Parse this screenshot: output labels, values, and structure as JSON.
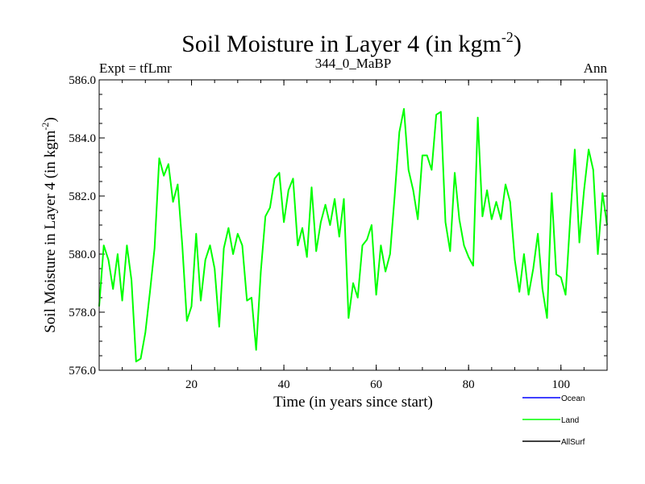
{
  "chart_data": {
    "type": "line",
    "title_main": "Soil Moisture in Layer 4 (in kgm",
    "title_sup": "-2",
    "title_close": ")",
    "subtitle_left": "Expt = tfLmr",
    "subtitle_center": "344_0_MaBP",
    "subtitle_right": "Ann",
    "xlabel": "Time (in years since start)",
    "ylabel_main": "Soil Moisture in Layer 4 (in kgm",
    "ylabel_sup": "-2",
    "ylabel_close": ")",
    "xlim": [
      0,
      110
    ],
    "ylim": [
      576.0,
      586.0
    ],
    "xticks": [
      20,
      40,
      60,
      80,
      100
    ],
    "yticks": [
      576.0,
      578.0,
      580.0,
      582.0,
      584.0,
      586.0
    ],
    "ytick_labels": [
      "576.0",
      "578.0",
      "580.0",
      "582.0",
      "584.0",
      "586.0"
    ],
    "legend_position": "bottom-right",
    "series": [
      {
        "name": "Ocean",
        "color": "#0000ff",
        "values": []
      },
      {
        "name": "Land",
        "color": "#00ff00",
        "x": [
          0,
          1,
          2,
          3,
          4,
          5,
          6,
          7,
          8,
          9,
          10,
          11,
          12,
          13,
          14,
          15,
          16,
          17,
          18,
          19,
          20,
          21,
          22,
          23,
          24,
          25,
          26,
          27,
          28,
          29,
          30,
          31,
          32,
          33,
          34,
          35,
          36,
          37,
          38,
          39,
          40,
          41,
          42,
          43,
          44,
          45,
          46,
          47,
          48,
          49,
          50,
          51,
          52,
          53,
          54,
          55,
          56,
          57,
          58,
          59,
          60,
          61,
          62,
          63,
          64,
          65,
          66,
          67,
          68,
          69,
          70,
          71,
          72,
          73,
          74,
          75,
          76,
          77,
          78,
          79,
          80,
          81,
          82,
          83,
          84,
          85,
          86,
          87,
          88,
          89,
          90,
          91,
          92,
          93,
          94,
          95,
          96,
          97,
          98,
          99,
          100,
          101,
          102,
          103,
          104,
          105,
          106,
          107,
          108,
          109,
          110
        ],
        "values": [
          578.2,
          580.3,
          579.8,
          578.8,
          580.0,
          578.4,
          580.3,
          579.1,
          576.3,
          576.4,
          577.3,
          578.7,
          580.2,
          583.3,
          582.7,
          583.1,
          581.8,
          582.4,
          580.3,
          577.7,
          578.2,
          580.7,
          578.4,
          579.8,
          580.3,
          579.5,
          577.5,
          580.2,
          580.9,
          580.0,
          580.7,
          580.3,
          578.4,
          578.5,
          576.7,
          579.4,
          581.3,
          581.6,
          582.6,
          582.8,
          581.1,
          582.2,
          582.6,
          580.3,
          580.9,
          579.9,
          582.3,
          580.1,
          581.1,
          581.7,
          581.0,
          581.9,
          580.6,
          581.9,
          577.8,
          579.0,
          578.5,
          580.3,
          580.5,
          581.0,
          578.6,
          580.3,
          579.4,
          580.0,
          582.0,
          584.2,
          585.0,
          582.9,
          582.2,
          581.2,
          583.4,
          583.4,
          582.9,
          584.8,
          584.9,
          581.1,
          580.1,
          582.8,
          581.2,
          580.3,
          579.9,
          579.6,
          584.7,
          581.3,
          582.2,
          581.2,
          581.8,
          581.2,
          582.4,
          581.8,
          579.8,
          578.7,
          580.0,
          578.6,
          579.5,
          580.7,
          578.8,
          577.8,
          582.1,
          579.3,
          579.2,
          578.6,
          581.2,
          583.6,
          580.4,
          582.2,
          583.6,
          582.9,
          580.0,
          582.1,
          581.0
        ]
      },
      {
        "name": "AllSurf",
        "color": "#000000",
        "values": []
      }
    ]
  }
}
